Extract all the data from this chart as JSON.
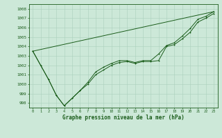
{
  "title": "Graphe pression niveau de la mer (hPa)",
  "bg_color": "#cce8d8",
  "line_color": "#1a5c1a",
  "grid_color": "#aad0bc",
  "xlim": [
    -0.5,
    23.5
  ],
  "ylim": [
    997.5,
    1008.5
  ],
  "yticks": [
    998,
    999,
    1000,
    1001,
    1002,
    1003,
    1004,
    1005,
    1006,
    1007,
    1008
  ],
  "xticks": [
    0,
    1,
    2,
    3,
    4,
    5,
    6,
    7,
    8,
    9,
    10,
    11,
    12,
    13,
    14,
    15,
    16,
    17,
    18,
    19,
    20,
    21,
    22,
    23
  ],
  "line1_x": [
    0,
    1,
    2,
    3,
    4,
    5,
    6,
    7,
    8,
    9,
    10,
    11,
    12,
    13,
    14,
    15,
    16,
    17,
    18,
    19,
    20,
    21,
    22,
    23
  ],
  "line1_y": [
    1003.5,
    1002.0,
    1000.5,
    998.8,
    997.7,
    998.5,
    999.3,
    1000.0,
    1001.0,
    1001.5,
    1002.0,
    1002.3,
    1002.4,
    1002.2,
    1002.4,
    1002.4,
    1002.5,
    1004.0,
    1004.2,
    1004.8,
    1005.5,
    1006.6,
    1007.0,
    1007.5
  ],
  "line2_x": [
    0,
    1,
    2,
    3,
    4,
    5,
    6,
    7,
    8,
    9,
    10,
    11,
    12,
    13,
    14,
    15,
    16,
    17,
    18,
    19,
    20,
    21,
    22,
    23
  ],
  "line2_y": [
    1003.5,
    1002.0,
    1000.5,
    998.8,
    997.7,
    998.5,
    999.3,
    1000.2,
    1001.3,
    1001.8,
    1002.2,
    1002.5,
    1002.5,
    1002.3,
    1002.5,
    1002.5,
    1003.2,
    1004.1,
    1004.4,
    1005.1,
    1005.9,
    1006.9,
    1007.2,
    1007.7
  ],
  "line3_x": [
    0,
    23
  ],
  "line3_y": [
    1003.5,
    1007.7
  ]
}
